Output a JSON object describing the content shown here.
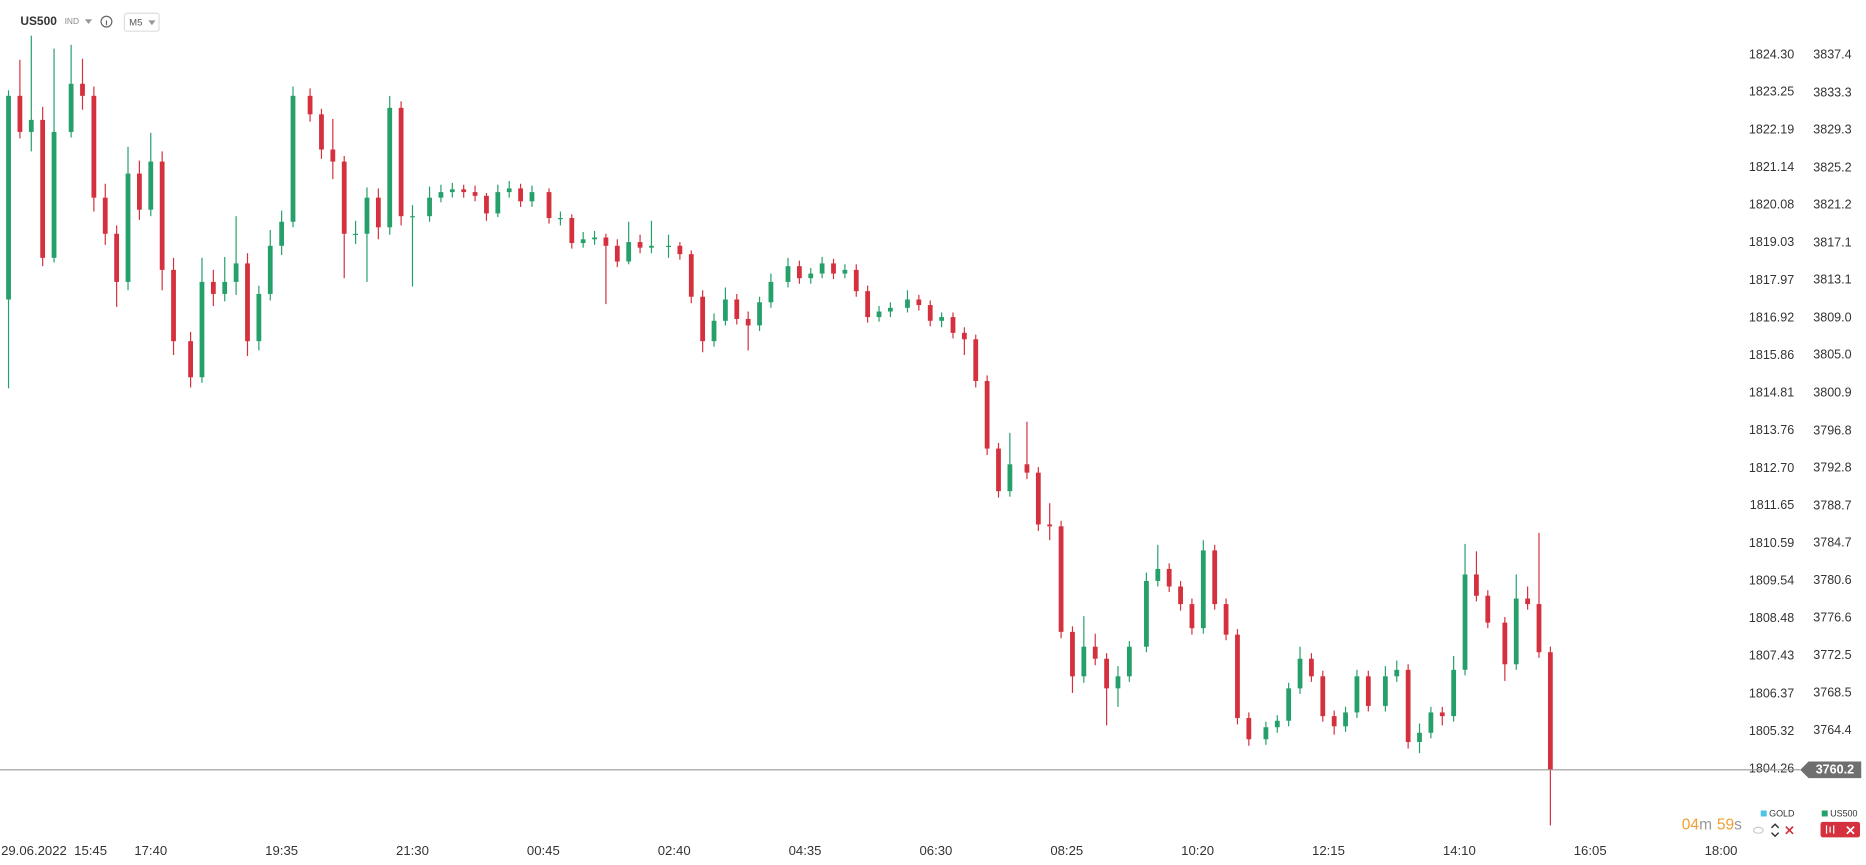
{
  "header": {
    "symbol": "US500",
    "market": "IND",
    "timeframe": "M5"
  },
  "countdown": {
    "minutes": "04",
    "minutes_unit": "m",
    "seconds": "59",
    "seconds_unit": "s"
  },
  "chart_data": {
    "type": "candlestick",
    "up_color": "#26a06a",
    "down_color": "#d4303e",
    "legend": [
      {
        "name": "GOLD",
        "color": "#4fc3e6"
      },
      {
        "name": "US500",
        "color": "#26a06a"
      }
    ],
    "last_price": 3760.2,
    "xlim": [
      -1.5,
      304.4
    ],
    "xticks": [
      {
        "value": 8,
        "label": "29.06.2022  15:45"
      },
      {
        "value": 25,
        "label": "17:40"
      },
      {
        "value": 48,
        "label": "19:35"
      },
      {
        "value": 71,
        "label": "21:30"
      },
      {
        "value": 94,
        "label": "00:45"
      },
      {
        "value": 117,
        "label": "02:40"
      },
      {
        "value": 140,
        "label": "04:35"
      },
      {
        "value": 163,
        "label": "06:30"
      },
      {
        "value": 186,
        "label": "08:25"
      },
      {
        "value": 209,
        "label": "10:20"
      },
      {
        "value": 232,
        "label": "12:15"
      },
      {
        "value": 255,
        "label": "14:10"
      },
      {
        "value": 278,
        "label": "16:05"
      },
      {
        "value": 301,
        "label": "18:00"
      }
    ],
    "ylim": [
      3752.9,
      3843.34
    ],
    "yticks": [
      3837.4,
      3833.3,
      3829.3,
      3825.2,
      3821.2,
      3817.1,
      3813.1,
      {
        "value": 3809.0,
        "label": "3809.0"
      },
      {
        "value": 3805.0,
        "label": "3805.0"
      },
      3800.9,
      3796.8,
      3792.8,
      3788.7,
      3784.7,
      3780.6,
      3776.6,
      3772.5,
      3768.5,
      3764.4
    ],
    "y2lim": [
      1802.35,
      1825.84
    ],
    "y2ticks": [
      {
        "value": 1824.3,
        "label": "1824.30"
      },
      1823.25,
      1822.19,
      1821.14,
      1820.08,
      1819.03,
      1817.97,
      1816.92,
      1815.86,
      1814.81,
      1813.76,
      {
        "value": 1812.7,
        "label": "1812.70"
      },
      1811.65,
      1810.59,
      1809.54,
      1808.48,
      1807.43,
      1806.37,
      1805.32,
      1804.26
    ],
    "x": [
      0,
      2,
      4,
      6,
      8,
      11,
      13,
      15,
      17,
      19,
      21,
      23,
      25,
      27,
      29,
      32,
      34,
      36,
      38,
      40,
      42,
      44,
      46,
      48,
      50,
      53,
      55,
      57,
      59,
      61,
      63,
      65,
      67,
      69,
      71,
      74,
      76,
      78,
      80,
      82,
      84,
      86,
      88,
      90,
      92,
      95,
      97,
      99,
      101,
      103,
      105,
      107,
      109,
      111,
      113,
      116,
      118,
      120,
      122,
      124,
      126,
      128,
      130,
      132,
      134,
      137,
      139,
      141,
      143,
      145,
      147,
      149,
      151,
      153,
      155,
      158,
      160,
      162,
      164,
      166,
      168,
      170,
      172,
      174,
      176,
      179,
      181,
      183,
      185,
      187,
      189,
      191,
      193,
      195,
      197,
      200,
      202,
      204,
      206,
      208,
      210,
      212,
      214,
      216,
      218,
      221,
      223,
      225,
      227,
      229,
      231,
      233,
      235,
      237,
      239,
      242,
      244,
      246,
      248,
      250,
      252,
      254,
      256,
      258,
      260,
      263,
      265,
      267,
      269,
      271
    ],
    "ohlc": [
      [
        3811.0,
        3833.6,
        3801.4,
        3833.0
      ],
      [
        3833.0,
        3836.9,
        3828.4,
        3829.1
      ],
      [
        3829.1,
        3839.5,
        3827.0,
        3830.4
      ],
      [
        3830.4,
        3831.8,
        3814.6,
        3815.5
      ],
      [
        3815.5,
        3838.1,
        3815.0,
        3829.1
      ],
      [
        3829.1,
        3838.5,
        3828.5,
        3834.3
      ],
      [
        3834.3,
        3837.0,
        3831.5,
        3833.0
      ],
      [
        3833.0,
        3834.0,
        3820.5,
        3822.0
      ],
      [
        3822.0,
        3823.5,
        3816.9,
        3818.1
      ],
      [
        3818.1,
        3819.0,
        3810.2,
        3812.9
      ],
      [
        3812.9,
        3827.5,
        3812.0,
        3824.6
      ],
      [
        3824.6,
        3826.0,
        3819.6,
        3820.7
      ],
      [
        3820.7,
        3829.0,
        3820.0,
        3825.9
      ],
      [
        3825.9,
        3827.0,
        3812.0,
        3814.2
      ],
      [
        3814.2,
        3815.5,
        3805.0,
        3806.5
      ],
      [
        3806.5,
        3807.5,
        3801.5,
        3802.6
      ],
      [
        3802.6,
        3815.5,
        3802.0,
        3812.9
      ],
      [
        3812.9,
        3814.2,
        3810.3,
        3811.6
      ],
      [
        3811.6,
        3815.6,
        3810.8,
        3812.9
      ],
      [
        3812.9,
        3820.0,
        3811.5,
        3814.9
      ],
      [
        3814.9,
        3816.0,
        3804.9,
        3806.5
      ],
      [
        3806.5,
        3812.5,
        3805.5,
        3811.6
      ],
      [
        3811.6,
        3818.5,
        3810.9,
        3816.8
      ],
      [
        3816.8,
        3820.6,
        3815.8,
        3819.4
      ],
      [
        3819.4,
        3834.0,
        3818.8,
        3833.0
      ],
      [
        3833.0,
        3833.8,
        3830.2,
        3831.0
      ],
      [
        3831.0,
        3831.6,
        3826.2,
        3827.2
      ],
      [
        3827.2,
        3830.5,
        3824.0,
        3825.9
      ],
      [
        3825.9,
        3826.5,
        3813.3,
        3818.1
      ],
      [
        3818.1,
        3819.5,
        3817.0,
        3818.1
      ],
      [
        3818.1,
        3823.1,
        3812.9,
        3822.0
      ],
      [
        3822.0,
        3823.0,
        3817.5,
        3818.8
      ],
      [
        3818.8,
        3833.0,
        3818.0,
        3831.7
      ],
      [
        3831.7,
        3832.4,
        3819.0,
        3820.0
      ],
      [
        3820.0,
        3821.2,
        3812.4,
        3820.0
      ],
      [
        3820.0,
        3823.2,
        3819.4,
        3822.0
      ],
      [
        3822.0,
        3823.4,
        3821.5,
        3822.6
      ],
      [
        3822.6,
        3823.6,
        3822.0,
        3822.9
      ],
      [
        3822.9,
        3823.4,
        3822.0,
        3822.6
      ],
      [
        3822.6,
        3823.3,
        3821.6,
        3822.2
      ],
      [
        3822.2,
        3822.5,
        3819.5,
        3820.3
      ],
      [
        3820.3,
        3823.4,
        3819.9,
        3822.6
      ],
      [
        3822.6,
        3823.8,
        3822.0,
        3823.0
      ],
      [
        3823.0,
        3823.5,
        3821.0,
        3821.6
      ],
      [
        3821.6,
        3823.3,
        3821.0,
        3822.6
      ],
      [
        3822.6,
        3823.0,
        3819.2,
        3819.8
      ],
      [
        3819.8,
        3820.5,
        3819.0,
        3819.8
      ],
      [
        3819.8,
        3820.2,
        3816.5,
        3817.1
      ],
      [
        3817.1,
        3818.3,
        3816.6,
        3817.5
      ],
      [
        3817.5,
        3818.4,
        3816.9,
        3817.7
      ],
      [
        3817.7,
        3818.1,
        3810.5,
        3816.8
      ],
      [
        3816.8,
        3817.5,
        3814.5,
        3815.1
      ],
      [
        3815.1,
        3819.4,
        3814.8,
        3817.2
      ],
      [
        3817.2,
        3818.0,
        3816.0,
        3816.6
      ],
      [
        3816.6,
        3819.5,
        3816.0,
        3816.8
      ],
      [
        3816.8,
        3818.0,
        3815.5,
        3816.8
      ],
      [
        3816.8,
        3817.2,
        3815.3,
        3815.9
      ],
      [
        3815.9,
        3816.3,
        3810.6,
        3811.3
      ],
      [
        3811.3,
        3812.0,
        3805.3,
        3806.5
      ],
      [
        3806.5,
        3809.5,
        3805.9,
        3808.7
      ],
      [
        3808.7,
        3812.3,
        3808.2,
        3811.0
      ],
      [
        3811.0,
        3811.6,
        3808.3,
        3808.9
      ],
      [
        3808.9,
        3809.7,
        3805.5,
        3808.2
      ],
      [
        3808.2,
        3811.3,
        3807.6,
        3810.7
      ],
      [
        3810.7,
        3813.8,
        3810.1,
        3812.9
      ],
      [
        3812.9,
        3815.5,
        3812.3,
        3814.6
      ],
      [
        3814.6,
        3815.2,
        3812.7,
        3813.3
      ],
      [
        3813.3,
        3814.4,
        3812.7,
        3813.8
      ],
      [
        3813.8,
        3815.6,
        3813.3,
        3814.9
      ],
      [
        3814.9,
        3815.4,
        3813.2,
        3813.8
      ],
      [
        3813.8,
        3814.8,
        3813.3,
        3814.2
      ],
      [
        3814.2,
        3814.8,
        3811.3,
        3811.9
      ],
      [
        3811.9,
        3812.5,
        3808.5,
        3809.1
      ],
      [
        3809.1,
        3810.3,
        3808.6,
        3809.7
      ],
      [
        3809.7,
        3810.7,
        3809.1,
        3810.1
      ],
      [
        3810.1,
        3812.0,
        3809.6,
        3811.0
      ],
      [
        3811.0,
        3811.5,
        3809.8,
        3810.4
      ],
      [
        3810.4,
        3810.9,
        3808.1,
        3808.7
      ],
      [
        3808.7,
        3809.6,
        3808.0,
        3809.1
      ],
      [
        3809.1,
        3809.6,
        3806.8,
        3807.4
      ],
      [
        3807.4,
        3808.0,
        3805.0,
        3806.7
      ],
      [
        3806.7,
        3807.2,
        3801.5,
        3802.2
      ],
      [
        3802.2,
        3802.8,
        3794.2,
        3794.9
      ],
      [
        3794.9,
        3795.5,
        3789.6,
        3790.3
      ],
      [
        3790.3,
        3796.6,
        3789.7,
        3793.2
      ],
      [
        3793.2,
        3797.8,
        3791.6,
        3792.3
      ],
      [
        3792.3,
        3792.9,
        3786.0,
        3786.7
      ],
      [
        3786.7,
        3789.0,
        3785.0,
        3786.5
      ],
      [
        3786.5,
        3787.1,
        3774.4,
        3775.1
      ],
      [
        3775.1,
        3775.7,
        3768.5,
        3770.3
      ],
      [
        3770.3,
        3776.8,
        3769.6,
        3773.5
      ],
      [
        3773.5,
        3774.9,
        3771.5,
        3772.2
      ],
      [
        3772.2,
        3772.8,
        3765.0,
        3769.0
      ],
      [
        3769.0,
        3771.4,
        3767.0,
        3770.3
      ],
      [
        3770.3,
        3774.1,
        3769.7,
        3773.5
      ],
      [
        3773.5,
        3781.5,
        3772.9,
        3780.6
      ],
      [
        3780.6,
        3784.5,
        3780.0,
        3781.9
      ],
      [
        3781.9,
        3782.5,
        3779.4,
        3780.0
      ],
      [
        3780.0,
        3780.6,
        3777.4,
        3778.1
      ],
      [
        3778.1,
        3778.7,
        3774.8,
        3775.5
      ],
      [
        3775.5,
        3785.0,
        3774.9,
        3783.9
      ],
      [
        3783.9,
        3784.5,
        3777.5,
        3778.1
      ],
      [
        3778.1,
        3778.7,
        3774.2,
        3774.8
      ],
      [
        3774.8,
        3775.4,
        3765.1,
        3765.8
      ],
      [
        3765.8,
        3766.4,
        3762.8,
        3763.5
      ],
      [
        3763.5,
        3765.4,
        3762.9,
        3764.8
      ],
      [
        3764.8,
        3766.1,
        3764.2,
        3765.5
      ],
      [
        3765.5,
        3769.6,
        3764.9,
        3769.0
      ],
      [
        3769.0,
        3773.5,
        3768.4,
        3772.2
      ],
      [
        3772.2,
        3772.8,
        3769.7,
        3770.3
      ],
      [
        3770.3,
        3770.9,
        3765.4,
        3766.0
      ],
      [
        3766.0,
        3766.6,
        3764.0,
        3764.9
      ],
      [
        3764.9,
        3767.0,
        3764.3,
        3766.4
      ],
      [
        3766.4,
        3771.0,
        3765.8,
        3770.3
      ],
      [
        3770.3,
        3770.9,
        3766.5,
        3767.1
      ],
      [
        3767.1,
        3771.4,
        3766.5,
        3770.3
      ],
      [
        3770.3,
        3772.0,
        3769.7,
        3771.0
      ],
      [
        3771.0,
        3771.6,
        3762.5,
        3763.2
      ],
      [
        3763.2,
        3765.2,
        3762.0,
        3764.2
      ],
      [
        3764.2,
        3767.0,
        3763.6,
        3766.4
      ],
      [
        3766.4,
        3767.0,
        3765.0,
        3766.0
      ],
      [
        3766.0,
        3772.5,
        3765.4,
        3771.0
      ],
      [
        3771.0,
        3784.6,
        3770.4,
        3781.3
      ],
      [
        3781.3,
        3783.8,
        3778.4,
        3779.0
      ],
      [
        3779.0,
        3779.6,
        3775.5,
        3776.1
      ],
      [
        3776.1,
        3776.7,
        3769.8,
        3771.6
      ],
      [
        3771.6,
        3781.3,
        3771.0,
        3778.7
      ],
      [
        3778.7,
        3780.0,
        3777.5,
        3778.1
      ],
      [
        3778.1,
        3785.8,
        3772.3,
        3772.9
      ],
      [
        3772.9,
        3773.5,
        3754.2,
        3760.2
      ]
    ]
  }
}
